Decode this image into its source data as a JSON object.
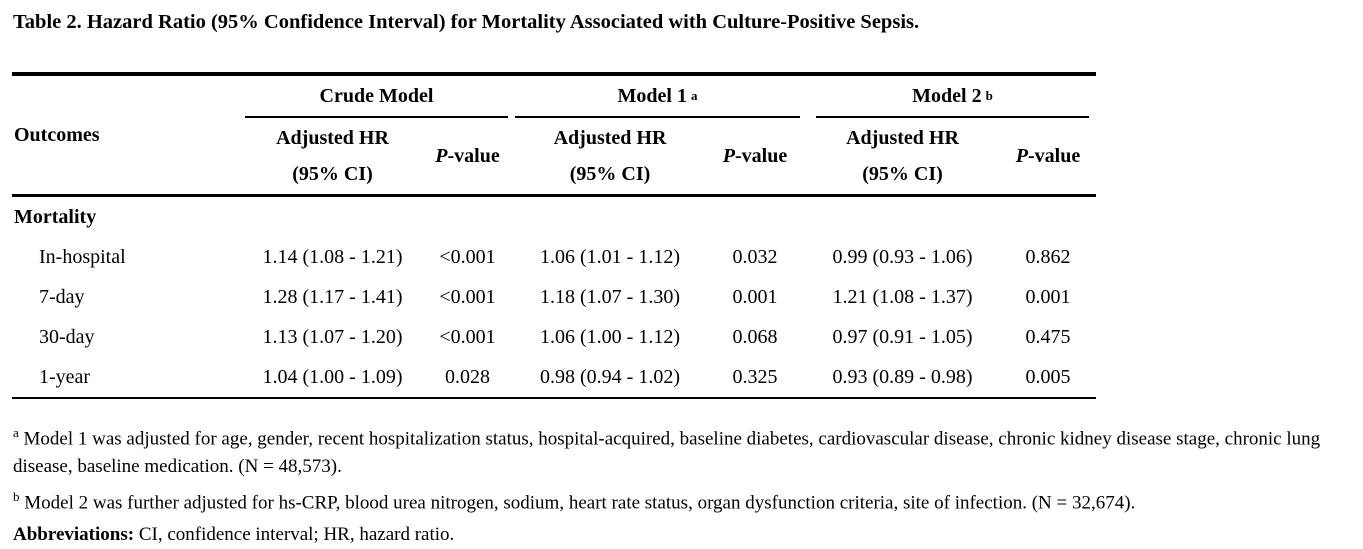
{
  "title": "Table 2. Hazard Ratio (95% Confidence Interval) for Mortality Associated with Culture-Positive Sepsis.",
  "table": {
    "outcomes_header": "Outcomes",
    "groups": [
      {
        "label": "Crude Model",
        "superscript": ""
      },
      {
        "label": "Model 1",
        "superscript": "a"
      },
      {
        "label": "Model 2",
        "superscript": "b"
      }
    ],
    "subheaders": {
      "hr_line1": "Adjusted HR",
      "hr_line2": "(95% CI)",
      "p_italic": "P",
      "p_rest": "-value"
    },
    "section_label": "Mortality",
    "rows": [
      {
        "outcome": "In-hospital",
        "crude_hr": "1.14 (1.08 - 1.21)",
        "crude_p": "<0.001",
        "m1_hr": "1.06 (1.01 - 1.12)",
        "m1_p": "0.032",
        "m2_hr": "0.99 (0.93 - 1.06)",
        "m2_p": "0.862"
      },
      {
        "outcome": "7-day",
        "crude_hr": "1.28 (1.17 - 1.41)",
        "crude_p": "<0.001",
        "m1_hr": "1.18 (1.07 - 1.30)",
        "m1_p": "0.001",
        "m2_hr": "1.21 (1.08 - 1.37)",
        "m2_p": "0.001"
      },
      {
        "outcome": "30-day",
        "crude_hr": "1.13 (1.07 - 1.20)",
        "crude_p": "<0.001",
        "m1_hr": "1.06 (1.00 - 1.12)",
        "m1_p": "0.068",
        "m2_hr": "0.97 (0.91 - 1.05)",
        "m2_p": "0.475"
      },
      {
        "outcome": "1-year",
        "crude_hr": "1.04 (1.00 - 1.09)",
        "crude_p": "0.028",
        "m1_hr": "0.98 (0.94 - 1.02)",
        "m1_p": "0.325",
        "m2_hr": "0.93 (0.89 - 0.98)",
        "m2_p": "0.005"
      }
    ]
  },
  "footnotes": [
    {
      "marker": "a",
      "text": "Model 1 was adjusted for age, gender, recent hospitalization status, hospital-acquired, baseline diabetes, cardiovascular disease, chronic kidney disease stage, chronic lung disease, baseline medication. (N = 48,573)."
    },
    {
      "marker": "b",
      "text": "Model 2 was further adjusted for hs-CRP, blood urea nitrogen, sodium, heart rate status, organ dysfunction criteria, site of infection. (N = 32,674)."
    }
  ],
  "abbreviations": {
    "label": "Abbreviations:",
    "text": "CI, confidence interval; HR, hazard ratio."
  }
}
